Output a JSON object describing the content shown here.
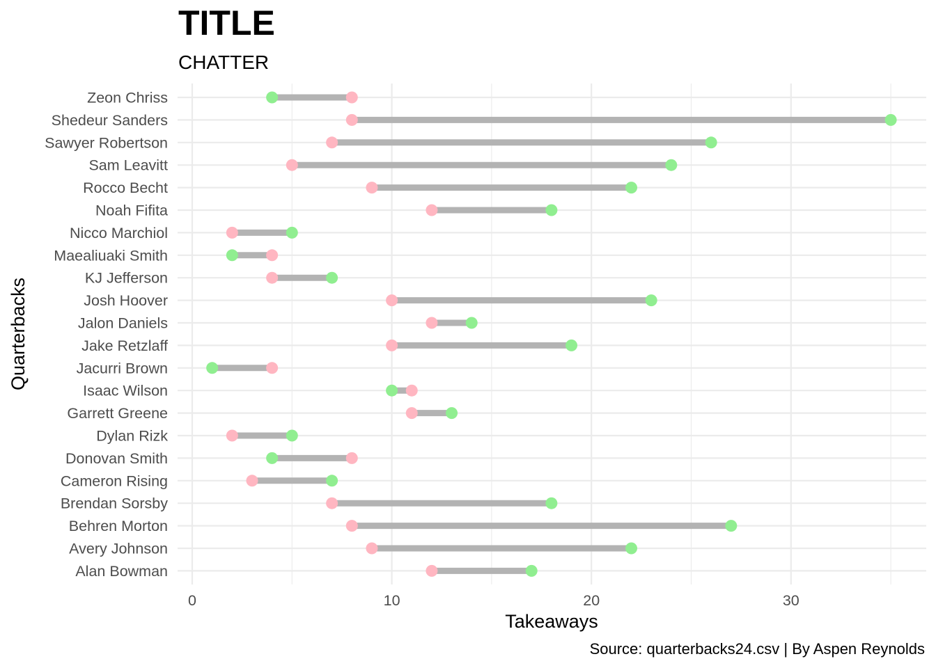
{
  "chart_data": {
    "type": "dumbbell",
    "title": "TITLE",
    "subtitle": "CHATTER",
    "xlabel": "Takeaways",
    "ylabel": "Quarterbacks",
    "caption": "Source: quarterbacks24.csv | By Aspen Reynolds",
    "xlim": [
      0,
      35
    ],
    "xticks": [
      0,
      10,
      20,
      30
    ],
    "grid": true,
    "colors": {
      "green": "#90EE90",
      "pink": "#FFB6C1",
      "segment": "#B3B3B3",
      "grid": "#EBEBEB"
    },
    "rows": [
      {
        "name": "Zeon Chriss",
        "green": 4,
        "pink": 8
      },
      {
        "name": "Shedeur Sanders",
        "green": 35,
        "pink": 8
      },
      {
        "name": "Sawyer Robertson",
        "green": 26,
        "pink": 7
      },
      {
        "name": "Sam Leavitt",
        "green": 24,
        "pink": 5
      },
      {
        "name": "Rocco Becht",
        "green": 22,
        "pink": 9
      },
      {
        "name": "Noah Fifita",
        "green": 18,
        "pink": 12
      },
      {
        "name": "Nicco Marchiol",
        "green": 5,
        "pink": 2
      },
      {
        "name": "Maealiuaki Smith",
        "green": 2,
        "pink": 4
      },
      {
        "name": "KJ Jefferson",
        "green": 7,
        "pink": 4
      },
      {
        "name": "Josh Hoover",
        "green": 23,
        "pink": 10
      },
      {
        "name": "Jalon Daniels",
        "green": 14,
        "pink": 12
      },
      {
        "name": "Jake Retzlaff",
        "green": 19,
        "pink": 10
      },
      {
        "name": "Jacurri Brown",
        "green": 1,
        "pink": 4
      },
      {
        "name": "Isaac Wilson",
        "green": 10,
        "pink": 11
      },
      {
        "name": "Garrett Greene",
        "green": 13,
        "pink": 11
      },
      {
        "name": "Dylan Rizk",
        "green": 5,
        "pink": 2
      },
      {
        "name": "Donovan Smith",
        "green": 4,
        "pink": 8
      },
      {
        "name": "Cameron Rising",
        "green": 7,
        "pink": 3
      },
      {
        "name": "Brendan Sorsby",
        "green": 18,
        "pink": 7
      },
      {
        "name": "Behren Morton",
        "green": 27,
        "pink": 8
      },
      {
        "name": "Avery Johnson",
        "green": 22,
        "pink": 9
      },
      {
        "name": "Alan Bowman",
        "green": 17,
        "pink": 12
      }
    ]
  }
}
